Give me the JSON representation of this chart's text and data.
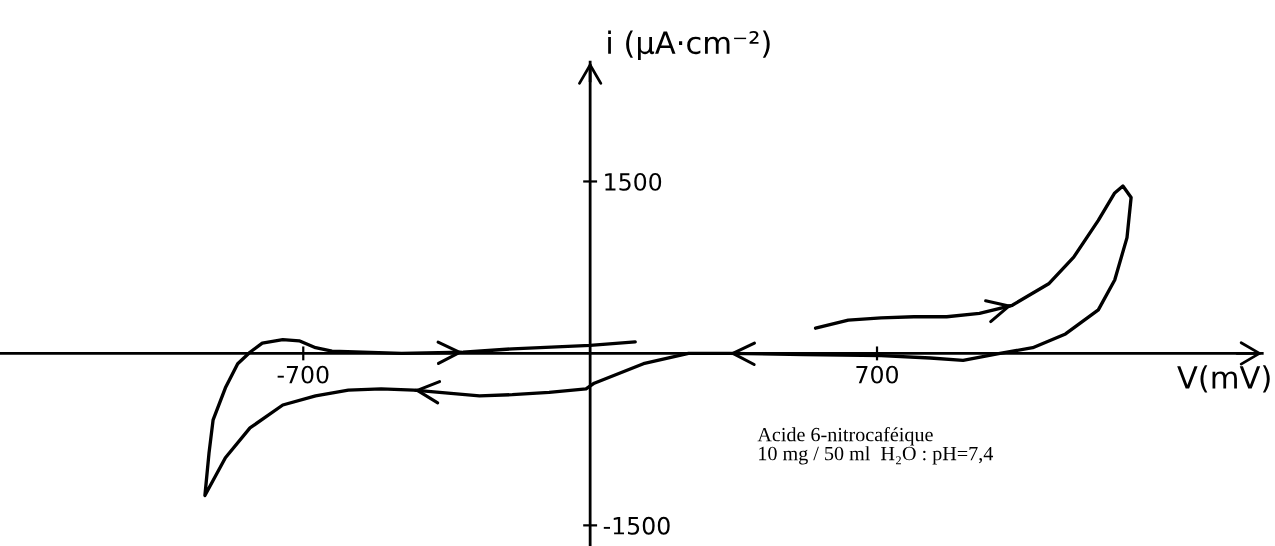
{
  "chart_data": {
    "type": "line",
    "xlabel": "V(mV)",
    "ylabel": "i (µA·cm⁻²)",
    "annotations": [
      "Acide 6-nitrocaféique\n10 mg / 50 ml  H₂O : pH=7,4"
    ],
    "xlim": [
      -1440,
      1640
    ],
    "ylim": [
      -1680,
      2540
    ],
    "xticks": [
      -700,
      700
    ],
    "yticks": [
      -1500,
      1500
    ],
    "color": "#000000",
    "x": [
      550,
      630,
      710,
      790,
      870,
      950,
      1030,
      1120,
      1180,
      1240,
      1280,
      1300,
      1320,
      1310,
      1280,
      1240,
      1160,
      1080,
      1000,
      910,
      830,
      710,
      520,
      340,
      240,
      130,
      10,
      -10,
      -100,
      -190,
      -270,
      -430,
      -510,
      -590,
      -670,
      -750,
      -830,
      -890,
      -940,
      -930,
      -920,
      -890,
      -860,
      -830,
      -800,
      -750,
      -710,
      -670,
      -630,
      -460,
      -310,
      -190,
      0,
      110
    ],
    "values": [
      220,
      290,
      310,
      320,
      320,
      350,
      420,
      610,
      840,
      1160,
      1400,
      1460,
      1360,
      1010,
      640,
      380,
      170,
      50,
      0,
      -60,
      -40,
      -20,
      -10,
      0,
      0,
      -90,
      -260,
      -310,
      -340,
      -360,
      -370,
      -320,
      -310,
      -320,
      -370,
      -450,
      -650,
      -910,
      -1240,
      -870,
      -580,
      -300,
      -90,
      10,
      90,
      120,
      110,
      50,
      20,
      0,
      10,
      40,
      70,
      100
    ]
  }
}
